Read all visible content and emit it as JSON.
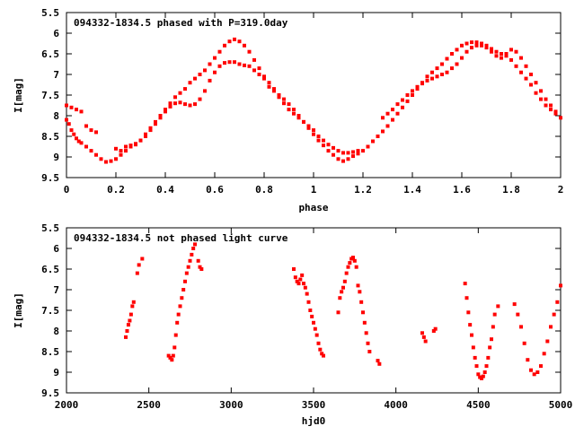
{
  "chart_data": [
    {
      "type": "scatter",
      "title": "094332-1834.5 phased with P=319.0day",
      "xlabel": "phase",
      "ylabel": "I[mag]",
      "xlim": [
        0,
        2
      ],
      "ylim": [
        5.5,
        9.5
      ],
      "y_inverted": true,
      "x_ticks": [
        "0",
        "0.2",
        "0.4",
        "0.6",
        "0.8",
        "1",
        "1.2",
        "1.4",
        "1.6",
        "1.8",
        "2"
      ],
      "y_ticks": [
        "5.5",
        "6",
        "6.5",
        "7",
        "7.5",
        "8",
        "8.5",
        "9",
        "9.5"
      ],
      "grid": false,
      "marker_color": "#ff0000",
      "series": [
        {
          "x": [
            0.0,
            0.01,
            0.02,
            0.03,
            0.04,
            0.05,
            0.06,
            0.08,
            0.1,
            0.12,
            0.14,
            0.16,
            0.18,
            0.2,
            0.22,
            0.24,
            0.26,
            0.28,
            0.3,
            0.32,
            0.34,
            0.36,
            0.38,
            0.4,
            0.42,
            0.44,
            0.46,
            0.48,
            0.5,
            0.52,
            0.54,
            0.56,
            0.58,
            0.6,
            0.62,
            0.64,
            0.66,
            0.68,
            0.7,
            0.72,
            0.74,
            0.76,
            0.78,
            0.8,
            0.82,
            0.84,
            0.86,
            0.88,
            0.9,
            0.92,
            0.94,
            0.96,
            0.98,
            1.0,
            1.02,
            1.04,
            1.06,
            1.08,
            1.1,
            1.12,
            1.14,
            1.16,
            1.18,
            1.2,
            1.22,
            1.24,
            1.26,
            1.28,
            1.3,
            1.32,
            1.34,
            1.36,
            1.38,
            1.4,
            1.42,
            1.44,
            1.46,
            1.48,
            1.5,
            1.52,
            1.54,
            1.56,
            1.58,
            1.6,
            1.62,
            1.64,
            1.66,
            1.68,
            1.7,
            1.72,
            1.74,
            1.76,
            1.78,
            1.8,
            1.82,
            1.84,
            1.86,
            1.88,
            1.9,
            1.92,
            1.94,
            1.96,
            1.98,
            2.0
          ],
          "y": [
            8.1,
            8.2,
            8.35,
            8.45,
            8.55,
            8.62,
            8.66,
            8.75,
            8.85,
            8.95,
            9.05,
            9.12,
            9.1,
            9.05,
            8.95,
            8.85,
            8.75,
            8.7,
            8.6,
            8.45,
            8.3,
            8.15,
            8.0,
            7.85,
            7.7,
            7.55,
            7.45,
            7.35,
            7.2,
            7.1,
            7.0,
            6.9,
            6.75,
            6.6,
            6.45,
            6.3,
            6.2,
            6.15,
            6.2,
            6.3,
            6.45,
            6.65,
            6.85,
            7.05,
            7.2,
            7.35,
            7.5,
            7.6,
            7.72,
            7.85,
            8.0,
            8.15,
            8.3,
            8.45,
            8.6,
            8.72,
            8.85,
            8.95,
            9.05,
            9.1,
            9.05,
            8.98,
            8.92,
            8.85,
            8.75,
            8.62,
            8.5,
            8.38,
            8.25,
            8.1,
            7.95,
            7.8,
            7.65,
            7.5,
            7.35,
            7.2,
            7.05,
            6.95,
            6.85,
            6.75,
            6.62,
            6.5,
            6.4,
            6.3,
            6.25,
            6.22,
            6.22,
            6.25,
            6.3,
            6.38,
            6.45,
            6.5,
            6.55,
            6.65,
            6.8,
            6.95,
            7.1,
            7.25,
            7.45,
            7.6,
            7.75,
            7.85,
            7.95,
            8.05
          ]
        },
        {
          "x": [
            0.0,
            0.02,
            0.04,
            0.06,
            0.08,
            0.1,
            0.12,
            0.2,
            0.22,
            0.24,
            0.26,
            0.28,
            0.3,
            0.32,
            0.34,
            0.36,
            0.38,
            0.4,
            0.42,
            0.44,
            0.46,
            0.48,
            0.5,
            0.52,
            0.54,
            0.56,
            0.58,
            0.6,
            0.62,
            0.64,
            0.66,
            0.68,
            0.7,
            0.72,
            0.74,
            0.76,
            0.78,
            0.8,
            0.82,
            0.84,
            0.86,
            0.88,
            0.9,
            0.92,
            0.94,
            0.96,
            0.98,
            1.0,
            1.02,
            1.04,
            1.06,
            1.08,
            1.1,
            1.12,
            1.14,
            1.16,
            1.18,
            1.28,
            1.3,
            1.32,
            1.34,
            1.36,
            1.38,
            1.4,
            1.42,
            1.44,
            1.46,
            1.48,
            1.5,
            1.52,
            1.54,
            1.56,
            1.58,
            1.6,
            1.62,
            1.64,
            1.66,
            1.68,
            1.7,
            1.72,
            1.74,
            1.76,
            1.78,
            1.8,
            1.82,
            1.84,
            1.86,
            1.88,
            1.9,
            1.92,
            1.94,
            1.96,
            1.98
          ],
          "y": [
            7.75,
            7.8,
            7.85,
            7.9,
            8.25,
            8.35,
            8.4,
            8.8,
            8.85,
            8.75,
            8.72,
            8.68,
            8.6,
            8.5,
            8.35,
            8.2,
            8.05,
            7.9,
            7.78,
            7.7,
            7.68,
            7.72,
            7.75,
            7.72,
            7.6,
            7.4,
            7.15,
            6.95,
            6.8,
            6.72,
            6.7,
            6.7,
            6.75,
            6.78,
            6.8,
            6.9,
            7.0,
            7.1,
            7.3,
            7.4,
            7.55,
            7.7,
            7.85,
            7.95,
            8.05,
            8.15,
            8.25,
            8.35,
            8.5,
            8.6,
            8.7,
            8.78,
            8.85,
            8.9,
            8.9,
            8.88,
            8.85,
            8.05,
            7.95,
            7.85,
            7.72,
            7.62,
            7.5,
            7.4,
            7.3,
            7.22,
            7.15,
            7.1,
            7.05,
            7.0,
            6.95,
            6.85,
            6.75,
            6.6,
            6.45,
            6.35,
            6.3,
            6.3,
            6.35,
            6.45,
            6.55,
            6.6,
            6.5,
            6.4,
            6.45,
            6.6,
            6.8,
            7.0,
            7.2,
            7.4,
            7.6,
            7.75,
            7.9
          ]
        }
      ]
    },
    {
      "type": "scatter",
      "title": "094332-1834.5 not phased light curve",
      "xlabel": "hjd0",
      "ylabel": "I[mag]",
      "xlim": [
        2000,
        5000
      ],
      "ylim": [
        5.5,
        9.5
      ],
      "y_inverted": true,
      "x_ticks": [
        "2000",
        "2500",
        "3000",
        "3500",
        "4000",
        "4500",
        "5000"
      ],
      "y_ticks": [
        "5.5",
        "6",
        "6.5",
        "7",
        "7.5",
        "8",
        "8.5",
        "9",
        "9.5"
      ],
      "grid": false,
      "marker_color": "#ff0000",
      "series": [
        {
          "x": [
            2360,
            2368,
            2376,
            2384,
            2392,
            2400,
            2408,
            2430,
            2440,
            2460,
            2620,
            2630,
            2640,
            2648,
            2656,
            2664,
            2672,
            2680,
            2690,
            2700,
            2710,
            2720,
            2730,
            2740,
            2750,
            2760,
            2770,
            2780,
            2800,
            2810,
            2820,
            3380,
            3390,
            3400,
            3410,
            3420,
            3430,
            3440,
            3450,
            3460,
            3470,
            3480,
            3490,
            3500,
            3510,
            3520,
            3530,
            3540,
            3550,
            3560,
            3650,
            3660,
            3670,
            3680,
            3690,
            3700,
            3710,
            3720,
            3730,
            3740,
            3750,
            3760,
            3770,
            3780,
            3790,
            3800,
            3810,
            3820,
            3830,
            3840,
            3890,
            3900,
            4160,
            4170,
            4180,
            4230,
            4240,
            4420,
            4430,
            4440,
            4450,
            4460,
            4470,
            4480,
            4490,
            4500,
            4510,
            4520,
            4530,
            4540,
            4550,
            4560,
            4570,
            4580,
            4590,
            4600,
            4620,
            4720,
            4740,
            4760,
            4780,
            4800,
            4820,
            4840,
            4860,
            4880,
            4900,
            4920,
            4940,
            4960,
            4980,
            5000
          ],
          "y": [
            8.15,
            8.0,
            7.85,
            7.75,
            7.6,
            7.4,
            7.3,
            6.6,
            6.4,
            6.25,
            8.6,
            8.65,
            8.7,
            8.6,
            8.4,
            8.1,
            7.8,
            7.6,
            7.4,
            7.2,
            7.0,
            6.8,
            6.6,
            6.45,
            6.3,
            6.15,
            6.0,
            5.9,
            6.3,
            6.45,
            6.5,
            6.5,
            6.7,
            6.8,
            6.85,
            6.75,
            6.65,
            6.85,
            6.95,
            7.1,
            7.3,
            7.5,
            7.65,
            7.8,
            7.95,
            8.1,
            8.3,
            8.45,
            8.55,
            8.6,
            7.55,
            7.2,
            7.05,
            6.95,
            6.8,
            6.6,
            6.45,
            6.35,
            6.25,
            6.22,
            6.3,
            6.45,
            6.9,
            7.05,
            7.3,
            7.55,
            7.8,
            8.05,
            8.3,
            8.5,
            8.72,
            8.8,
            8.05,
            8.15,
            8.25,
            8.0,
            7.95,
            6.85,
            7.2,
            7.55,
            7.85,
            8.1,
            8.4,
            8.65,
            8.85,
            9.05,
            9.12,
            9.15,
            9.1,
            9.0,
            8.85,
            8.65,
            8.4,
            8.2,
            7.9,
            7.6,
            7.4,
            7.35,
            7.6,
            7.9,
            8.3,
            8.7,
            8.95,
            9.05,
            9.0,
            8.85,
            8.55,
            8.25,
            7.9,
            7.6,
            7.3,
            6.9
          ]
        }
      ]
    }
  ]
}
